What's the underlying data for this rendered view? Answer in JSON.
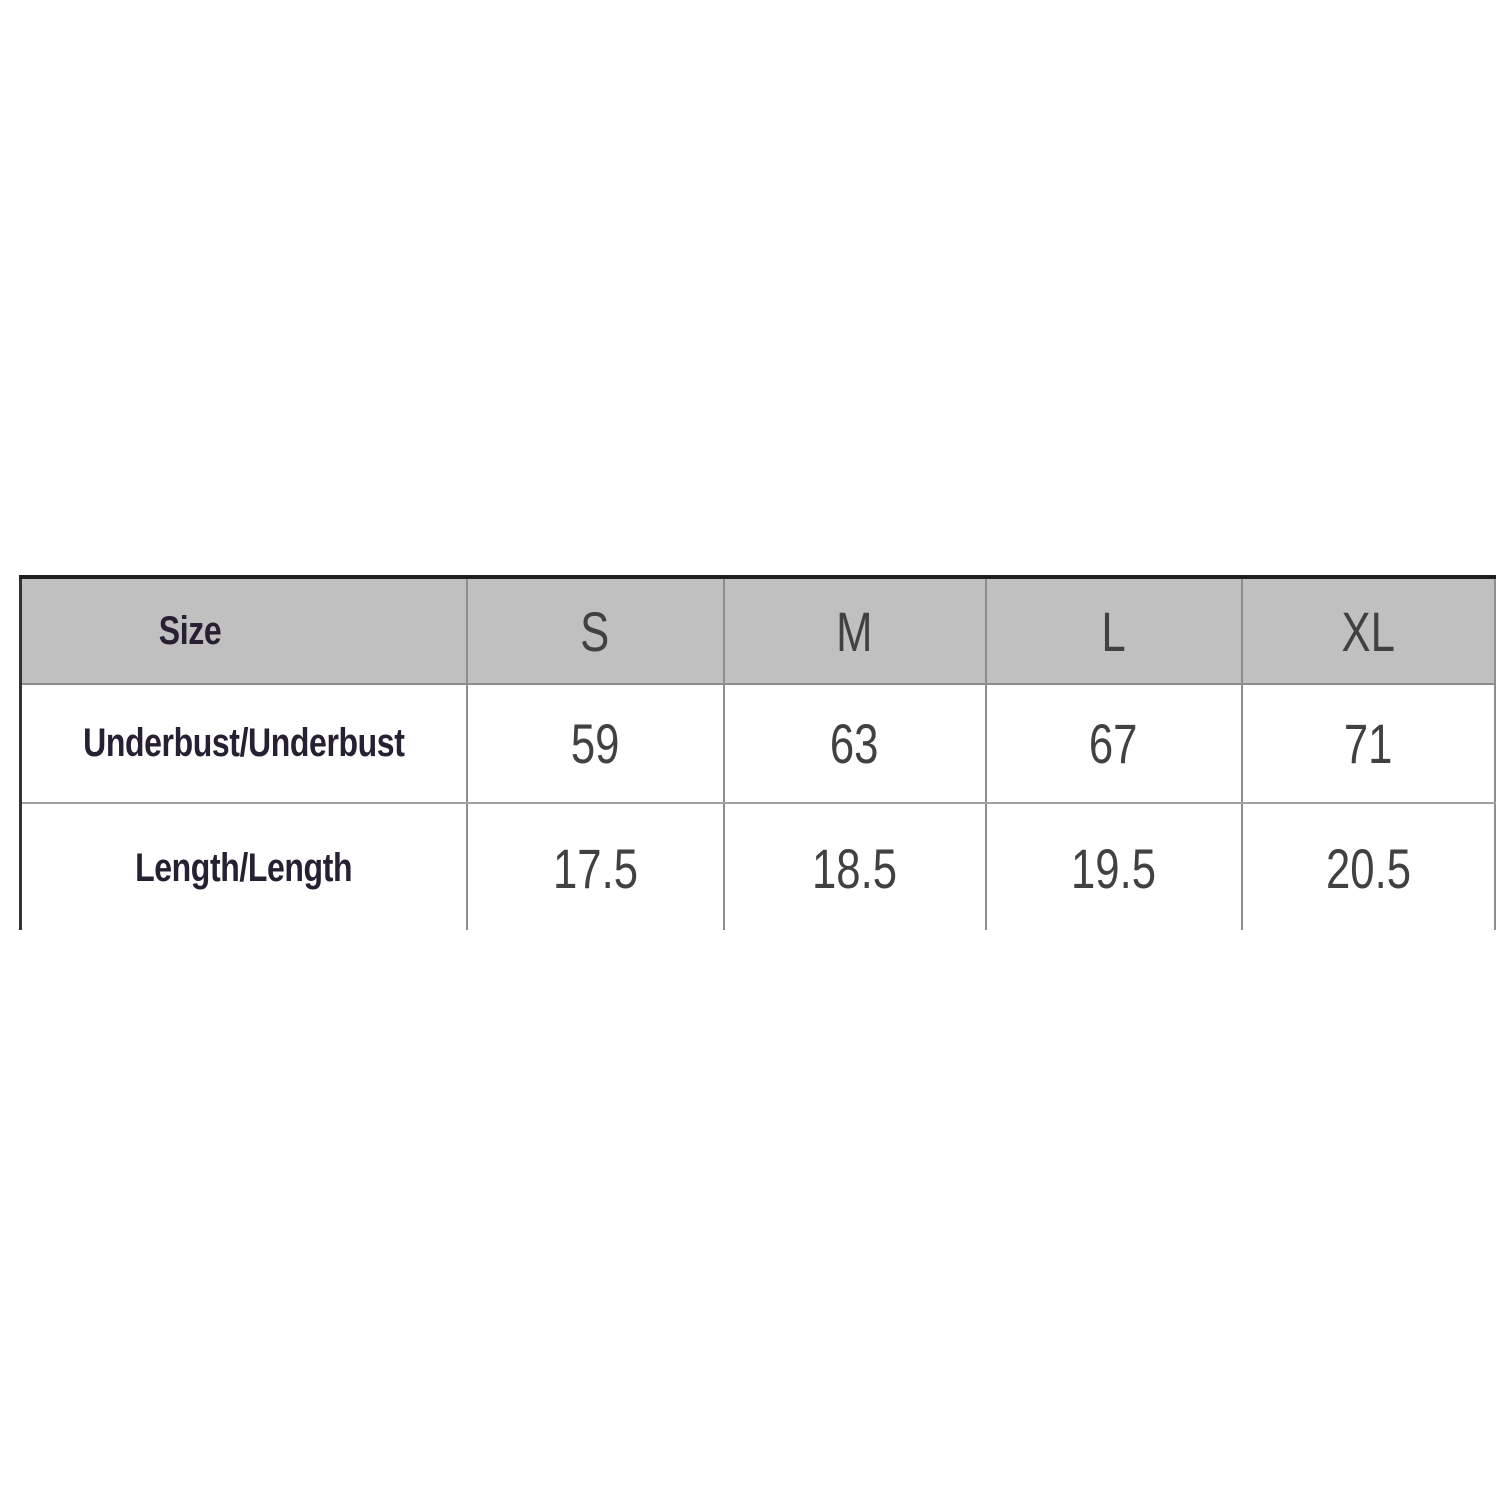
{
  "chart_data": {
    "type": "table",
    "title": "Garment size chart",
    "columns": [
      "Size",
      "S",
      "M",
      "L",
      "XL"
    ],
    "rows": [
      {
        "label": "Underbust/Underbust",
        "values": [
          59,
          63,
          67,
          71
        ]
      },
      {
        "label": "Length/Length",
        "values": [
          17.5,
          18.5,
          19.5,
          20.5
        ]
      }
    ],
    "layout_hints": {
      "header_row_shaded": true,
      "bottom_edge_clipped": true,
      "value_alignment": "center"
    }
  },
  "colors": {
    "page_bg": "#ffffff",
    "header_bg": "#c0c0c0",
    "border_dark": "#1e1e1e",
    "border_left": "#333333",
    "border_mid": "#8d8d8d",
    "border_light": "#a0a0a0",
    "label_color": "#272033",
    "value_color": "#414141"
  }
}
